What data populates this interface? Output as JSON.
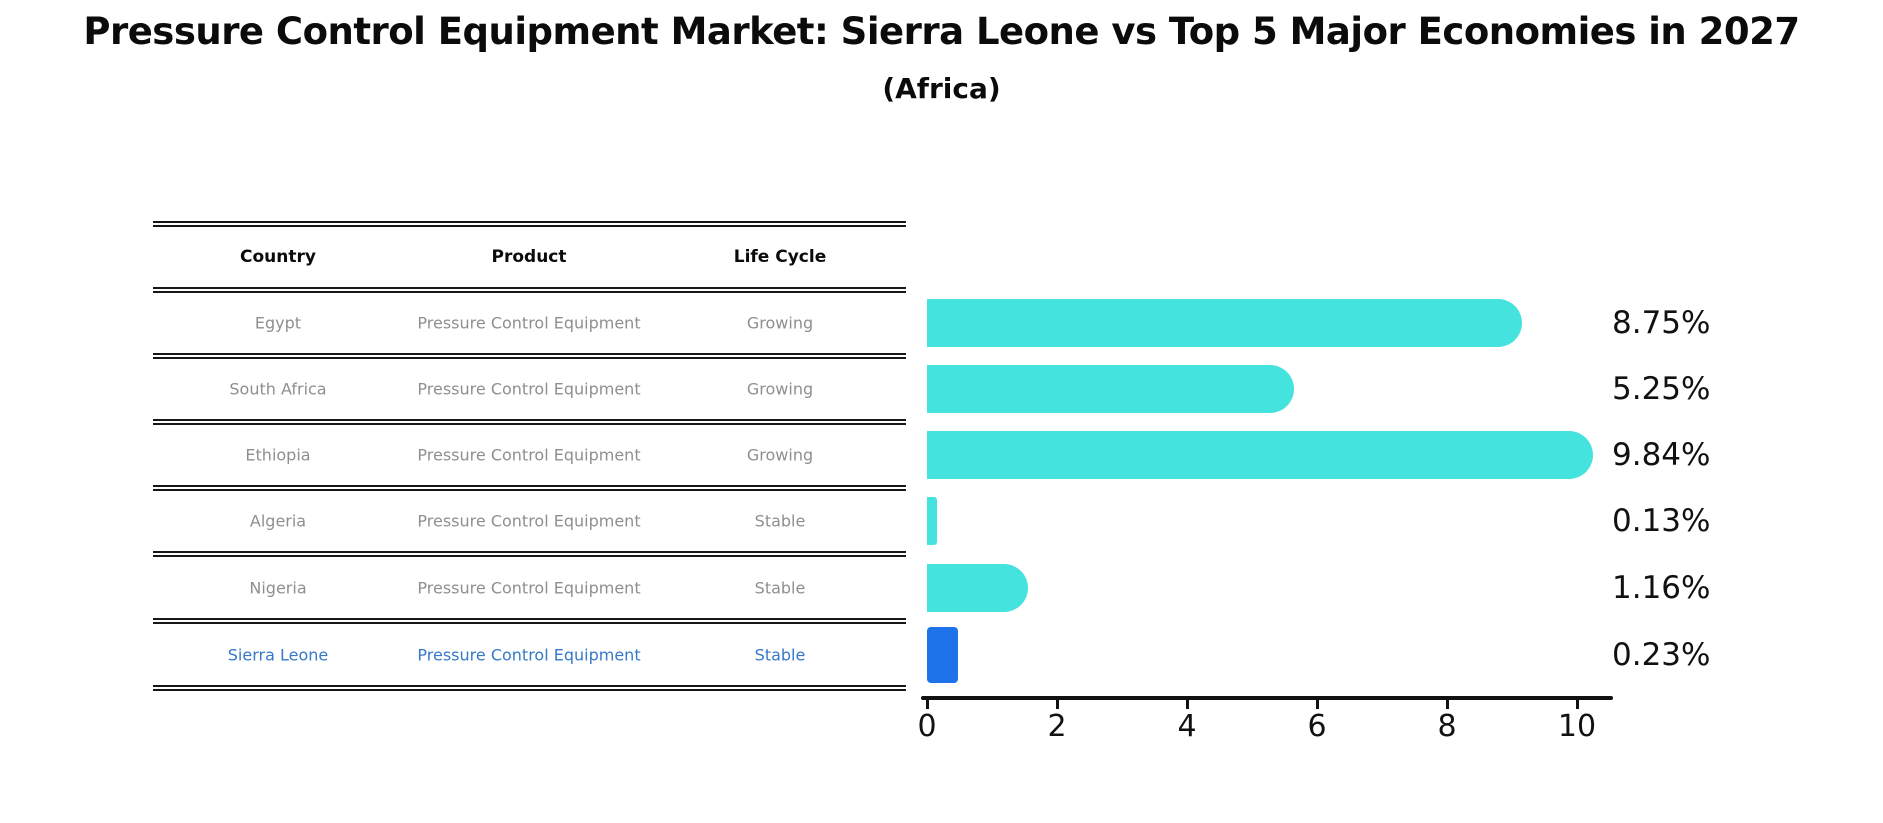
{
  "title": "Pressure Control Equipment Market: Sierra Leone vs Top 5 Major Economies in 2027",
  "subtitle": "(Africa)",
  "table": {
    "headers": [
      "Country",
      "Product",
      "Life Cycle"
    ],
    "rows": [
      {
        "country": "Egypt",
        "product": "Pressure Control Equipment",
        "life_cycle": "Growing",
        "highlight": false
      },
      {
        "country": "South Africa",
        "product": "Pressure Control Equipment",
        "life_cycle": "Growing",
        "highlight": false
      },
      {
        "country": "Ethiopia",
        "product": "Pressure Control Equipment",
        "life_cycle": "Growing",
        "highlight": false
      },
      {
        "country": "Algeria",
        "product": "Pressure Control Equipment",
        "life_cycle": "Stable",
        "highlight": false
      },
      {
        "country": "Nigeria",
        "product": "Pressure Control Equipment",
        "life_cycle": "Stable",
        "highlight": false
      },
      {
        "country": "Sierra Leone",
        "product": "Pressure Control Equipment",
        "life_cycle": "Stable",
        "highlight": true
      }
    ]
  },
  "chart_data": {
    "type": "bar",
    "orientation": "horizontal",
    "title": "Pressure Control Equipment Market: Sierra Leone vs Top 5 Major Economies in 2027 (Africa)",
    "categories": [
      "Egypt",
      "South Africa",
      "Ethiopia",
      "Algeria",
      "Nigeria",
      "Sierra Leone"
    ],
    "values": [
      8.75,
      5.25,
      9.84,
      0.13,
      1.16,
      0.23
    ],
    "value_labels": [
      "8.75%",
      "5.25%",
      "9.84%",
      "0.13%",
      "1.16%",
      "0.23%"
    ],
    "xlim": [
      0,
      10
    ],
    "xticks": [
      0,
      2,
      4,
      6,
      8,
      10
    ],
    "grid": false,
    "legend": "none",
    "bar_color": "#44e3de",
    "highlight_color": "#1e73eb",
    "highlight_index": 5,
    "highlight_text_color": "#3579c8"
  }
}
